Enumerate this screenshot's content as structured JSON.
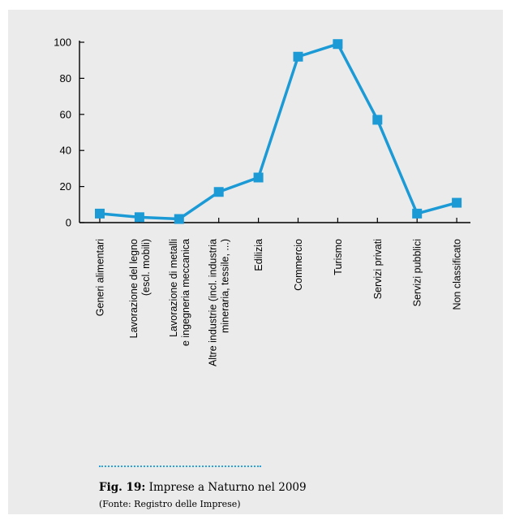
{
  "chart_data": {
    "type": "line",
    "categories": [
      [
        "Generi alimentari"
      ],
      [
        "Lavorazione del legno",
        "(escl. mobili)"
      ],
      [
        "Lavorazione di metalli",
        "e ingegneria meccanica"
      ],
      [
        "Altre industrie (incl. industria",
        "mineraria, tessile, ...)"
      ],
      [
        "Edilizia"
      ],
      [
        "Commercio"
      ],
      [
        "Turismo"
      ],
      [
        "Servizi privati"
      ],
      [
        "Servizi pubblici"
      ],
      [
        "Non classificato"
      ]
    ],
    "values": [
      5,
      3,
      2,
      17,
      25,
      92,
      99,
      57,
      5,
      11
    ],
    "ylim": [
      0,
      100
    ],
    "yticks": [
      0,
      20,
      40,
      60,
      80,
      100
    ],
    "color": "#1b9ad6",
    "grid": false
  },
  "caption": {
    "label": "Fig. 19:",
    "text": " Imprese a Naturno nel 2009",
    "source": "(Fonte: Registro delle Imprese)"
  }
}
